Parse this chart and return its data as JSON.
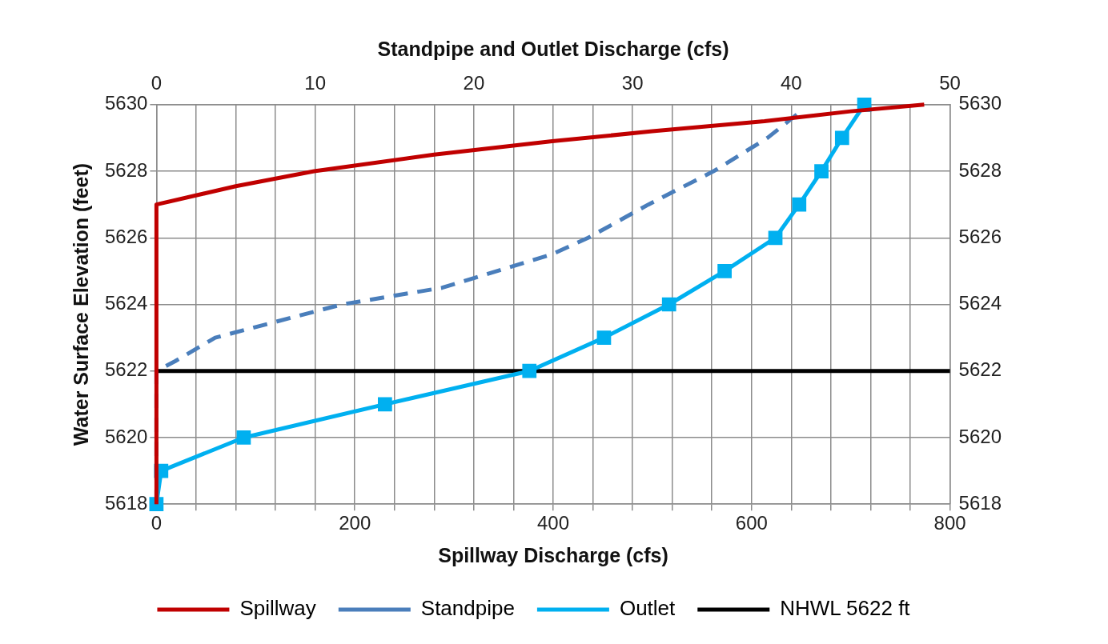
{
  "chart_data": {
    "type": "line",
    "xlabel": "Spillway Discharge (cfs)",
    "x2label": "Standpipe and Outlet Discharge (cfs)",
    "ylabel": "Water Surface Elevation (feet)",
    "xlim": [
      0,
      800
    ],
    "xticks": [
      0,
      {
        "value": 40,
        "label": null
      },
      {
        "value": 80,
        "label": null
      },
      {
        "value": 120,
        "label": null
      },
      {
        "value": 160,
        "label": null
      },
      200,
      {
        "value": 240,
        "label": null
      },
      {
        "value": 280,
        "label": null
      },
      {
        "value": 320,
        "label": null
      },
      {
        "value": 360,
        "label": null
      },
      400,
      {
        "value": 440,
        "label": null
      },
      {
        "value": 480,
        "label": null
      },
      {
        "value": 520,
        "label": null
      },
      {
        "value": 560,
        "label": null
      },
      600,
      {
        "value": 640,
        "label": null
      },
      {
        "value": 680,
        "label": null
      },
      {
        "value": 720,
        "label": null
      },
      {
        "value": 760,
        "label": null
      },
      800
    ],
    "x2lim": [
      0,
      50
    ],
    "x2ticks": [
      0,
      10,
      20,
      30,
      40,
      50
    ],
    "ylim": [
      5618,
      5630
    ],
    "yticks": [
      5618,
      5620,
      5622,
      5624,
      5626,
      5628,
      5630
    ],
    "y2lim": [
      5618,
      5630
    ],
    "y2ticks": [
      5618,
      5620,
      5622,
      5624,
      5626,
      5628,
      5630
    ],
    "grid": true,
    "legend": "bottom",
    "series": [
      {
        "name": "Spillway",
        "color": "#c00000",
        "line_style": "solid",
        "marker": "none",
        "x": [
          0,
          0,
          80,
          159,
          280,
          399,
          500,
          613,
          700,
          774
        ],
        "values": [
          5618,
          5627,
          5627.55,
          5628,
          5628.5,
          5628.9,
          5629.2,
          5629.5,
          5629.8,
          5630
        ]
      },
      {
        "name": "Standpipe",
        "color": "#4a7ebb",
        "line_style": "dashed",
        "marker": "none",
        "axis": "x2",
        "x": [
          0,
          0,
          1.2,
          3.7,
          11.7,
          18,
          24.9,
          27.2,
          31,
          35.1,
          38.5,
          40.6
        ],
        "values": [
          5618,
          5622,
          5622.3,
          5623,
          5624,
          5624.5,
          5625.5,
          5626,
          5627,
          5628,
          5629,
          5629.8
        ]
      },
      {
        "name": "Outlet",
        "color": "#00b0f0",
        "line_style": "solid",
        "marker": "square",
        "axis": "x2",
        "x": [
          0,
          0.3,
          5.5,
          14.4,
          23.5,
          28.2,
          32.3,
          35.8,
          39,
          40.5,
          41.9,
          43.2,
          44.6
        ],
        "values": [
          5618,
          5619,
          5620,
          5621,
          5622,
          5623,
          5624,
          5625,
          5626,
          5627,
          5628,
          5629,
          5630
        ]
      }
    ],
    "ref_lines": [
      {
        "axis": "y",
        "value": 5622,
        "label": "NHWL 5622 ft",
        "color": "#000000",
        "line_style": "solid"
      }
    ]
  }
}
